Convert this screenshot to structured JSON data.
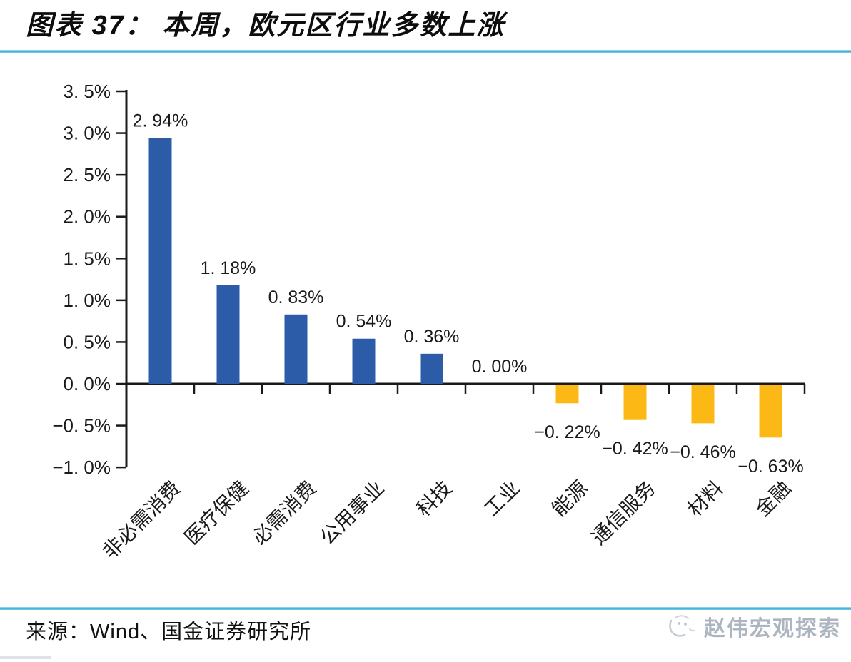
{
  "header": {
    "title": "图表 37： 本周，欧元区行业多数上涨"
  },
  "footer": {
    "source": "来源：Wind、国金证券研究所",
    "watermark": "赵伟宏观探索"
  },
  "colors": {
    "positive_bar": "#2c5ca8",
    "negative_bar": "#fcb814",
    "axis": "#1a1a1a",
    "accent_line": "#2ba7d4",
    "watermark": "#adb6c0"
  },
  "chart_data": {
    "type": "bar",
    "title": "图表 37： 本周，欧元区行业多数上涨",
    "categories": [
      "非必需消费",
      "医疗保健",
      "必需消费",
      "公用事业",
      "科技",
      "工业",
      "能源",
      "通信服务",
      "材料",
      "金融"
    ],
    "values": [
      2.94,
      1.18,
      0.83,
      0.54,
      0.36,
      0.0,
      -0.22,
      -0.42,
      -0.46,
      -0.63
    ],
    "value_labels": [
      "2. 94%",
      "1. 18%",
      "0. 83%",
      "0. 54%",
      "0. 36%",
      "0. 00%",
      "−0. 22%",
      "−0. 42%",
      "−0. 46%",
      "−0. 63%"
    ],
    "unit": "%",
    "xlabel": "",
    "ylabel": "",
    "ylim": [
      -1.0,
      3.5
    ],
    "ytick_step": 0.5,
    "ytick_labels": [
      "3. 5%",
      "3. 0%",
      "2. 5%",
      "2. 0%",
      "1. 5%",
      "1. 0%",
      "0. 5%",
      "0. 0%",
      "−0. 5%",
      "−1. 0%"
    ],
    "grid": false,
    "legend": null,
    "bar_label_position": "outside-end",
    "category_label_rotation_deg": 45
  }
}
